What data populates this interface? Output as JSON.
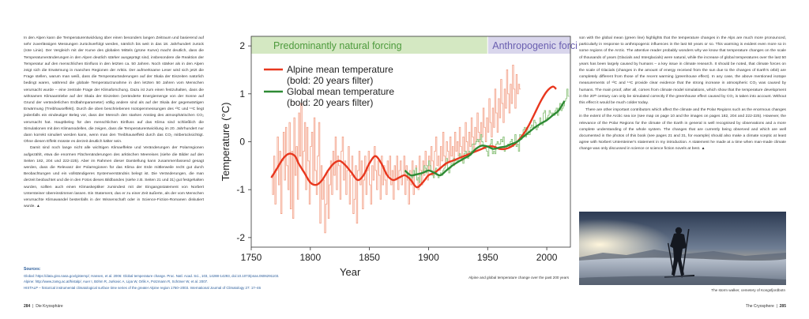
{
  "left_page": {
    "paragraphs": [
      "In den Alpen kann die Temperaturentwicklung über einen besonders langen Zeitraum und basierend auf sehr zuverlässigen Messungen zurückverfolgt werden, nämlich bis weit in das 18. Jahrhundert zurück (rote Linie). Der Vergleich mit der Kurve des globalen Mittels (grüne Kurve) macht deutlich, dass die Temperaturveränderungen in den Alpen deutlich stärker ausgeprägt sind, insbesondere die Reaktion der Temperatur auf den menschlichen Einfluss in den letzten ca. 50 Jahren. Noch stärker als in den Alpen zeigt sich die Erwärmung in manchen Regionen der Arktis. Der aufmerksame Leser wird sich jetzt die Frage stellen, warum man weiß, dass die Temperaturänderungen auf der Skala der Eiszeiten natürlich bedingt waren, während die globale Temperaturzunahme in den letzten 50 Jahren vom Menschen verursacht wurde – eine zentrale Frage der Klimaforschung. Dazu ist zum einen festzuhalten, dass die wirksamen Klimaantriebe auf der Skala der Eiszeiten (veränderte Energiemenge von der Sonne auf Grund der veränderlichen Erdbahnparameter) völlig andere sind als auf der Skala der gegenwärtigen Erwärmung (Treibhauseffekt). Durch die oben beschriebenen Isotopenmessungen des ¹³C und ¹⁴C liegt jedenfalls ein eindeutiger Beleg vor, dass der Mensch den starken Anstieg des atmosphärischen CO₂ verursacht hat. Hauptbeleg für den menschlichen Einfluss auf das Klima sind schließlich die Simulationen mit den Klimamodellen, die zeigen, dass die Temperaturentwicklung im 20. Jahrhundert nur dann korrekt simuliert werden kann, wenn man den Treibhauseffekt durch das CO₂ mitberücksichtigt. Ohne diesen Effekt müsste es derzeit deutlich kälter sein.",
      "Damit sind noch lange nicht alle wichtigen Klimaeffekte und Veränderungen der Polarregionen aufgezählt, etwa die enormen Flächenänderungen des arktischen Meereises (siehe die Bilder auf den Seiten 182, 204 und 222-225). Aber im Rahmen dieser Darstellung kann zusammenfassend gesagt werden, dass die Relevanz der Polarregionen für das Klima der Erde mittlerweile recht gut durch Beobachtungen und ein vollständigeres Systemverständnis belegt ist. Die Veränderungen, die man derzeit beobachtet und die in den Fotos dieses Bildbandes (siehe z.B. Seiten 21 und 31) gut festgehalten wurden, sollten auch einen Klimaskeptiker zumindest mit der Eingangsstatement von Norbert Untersteiner übereinstimmen lassen. Ein Statement, das er zu einer Zeit äußerte, als der vom Menschen verursachte Klimawandel bestenfalls in der Wissenschaft oder in Science-Fiction-Romanen diskutiert wurde. ▲"
    ]
  },
  "right_page": {
    "paragraphs": [
      "son with the global mean (green line) highlights that the temperature changes in the Alps are much more pronounced, particularly in response to anthropogenic influences in the last 50 years or so. This warming is evident even more so in some regions of the Arctic. The attentive reader probably wonders why we know that temperature changes on the scale of thousands of years (Glacials and Interglacials) were natural, while the increase of global temperatures over the last 50 years has been largely caused by humans – a key issue in climate research. It should be noted, that climate forces on the scale of Glacials (changes in the amount of energy received from the sun due to the changes of Earth's orbit) are completely different from those of the recent warming (greenhouse effect). In any case, the above mentioned isotope measurements of ¹³C and ¹⁴C provide clear evidence that the strong increase in atmospheric CO₂ was caused by humans. The main proof, after all, comes from climate model simulations, which show that the temperature development in the 20ᵗʰ century can only be simulated correctly if the greenhouse effect caused by CO₂ is taken into account. Without this effect it would be much colder today.",
      "There are other important contributors which affect the climate and the Polar Regions such as the enormous changes in the extent of the Arctic sea ice (see map on page 10 and the images on pages 182, 204 and 222-225). However, the relevance of the Polar Regions for the climate of the Earth in general is well recognised by observations and a more complete understanding of the whole system. The changes that are currently being observed and which are well documented in the photos of this book (see pages 21 and 31, for example) should also make a climate sceptic at least agree with Norbert Untersteiner's statement in my introduction. A statement he made at a time when man-made climate change was only discussed in science or science fiction novels at best. ▲"
    ]
  },
  "sources": {
    "title": "Sources:",
    "lines": [
      "Global: https://data.giss.nasa.gov/gistemp/, Hansen, et al. 2006: Global temperature change. Proc. Natl. Acad. Sci., 103, 14288-14293, doi:10.1073/pnas.0606291103.",
      "Alpine: http://www.zamg.ac.at/histalp/, Auer I, Böhm R, Jurkovic A, Lipa W, Orlik A, Potzmann R, Schöner W, et al. 2007.",
      "HISTALP – historical instrumental climatological surface time series of the greater Alpine region 1760–2003. International Journal of Climatology 27: 17–46"
    ]
  },
  "captions": {
    "chart": "Alpine and global temperature change over the past 200 years",
    "photo": "The storm walker, cemetery of Kongsfjordbotn/Dikson ...",
    "photo_short": "The storm walker, cemetery of Kongsfjordbotn"
  },
  "footer": {
    "left_page_num": "284",
    "left_title": "Die Kryosphäre",
    "right_title": "The Cryosphere",
    "right_page_num": "285",
    "separator": "|"
  },
  "colors": {
    "natural_band": "#d4e8c2",
    "anthro_band": "#d9d6ec",
    "alpine_thin": "#f4a58d",
    "alpine_bold": "#e8371e",
    "global_thin": "#8ac17a",
    "global_bold": "#2e8a34"
  },
  "chart_data": {
    "type": "line",
    "title": "",
    "xlabel": "Year",
    "ylabel": "Temperature (°C)",
    "xlim": [
      1750,
      2020
    ],
    "ylim": [
      -2.2,
      2.2
    ],
    "xticks": [
      1750,
      1800,
      1850,
      1900,
      1950,
      2000
    ],
    "yticks": [
      -2,
      -1,
      0,
      1,
      2
    ],
    "bands": [
      {
        "label": "Predominantly natural forcing",
        "from": 1750,
        "to": 1950
      },
      {
        "label": "Anthropogenic forcing",
        "from": 1950,
        "to": 2020
      }
    ],
    "legend": [
      {
        "line1": "Alpine mean temperature",
        "line2": "(bold: 20 years filter)"
      },
      {
        "line1": "Global mean temperature",
        "line2": "(bold: 20 years filter)"
      }
    ],
    "alpine_annual": {
      "x_start": 1767,
      "values": [
        -0.7,
        -1.1,
        -0.3,
        -1.3,
        -0.6,
        0.1,
        -0.9,
        -0.2,
        -1.5,
        -0.4,
        0.2,
        -0.8,
        0.3,
        -0.5,
        -1.0,
        0.4,
        -1.4,
        -0.2,
        -1.6,
        0.5,
        -0.7,
        -0.1,
        -1.2,
        0.6,
        -0.3,
        0.8,
        -0.6,
        -0.2,
        0.4,
        -1.0,
        0.3,
        -0.4,
        -1.3,
        -0.1,
        0.2,
        -0.9,
        0.5,
        -0.6,
        -1.1,
        -0.3,
        0.4,
        -1.7,
        -0.5,
        -1.2,
        -0.8,
        -1.9,
        -1.3,
        -0.6,
        -1.6,
        -0.9,
        -0.4,
        -1.1,
        -0.2,
        -0.7,
        0.1,
        -1.0,
        -0.3,
        -0.5,
        -1.2,
        -0.2,
        0.1,
        -0.8,
        -0.4,
        -1.1,
        -0.6,
        -0.1,
        -1.3,
        -0.7,
        -0.3,
        -1.5,
        -1.2,
        -0.5,
        -1.7,
        -0.6,
        -0.2,
        -0.9,
        -0.4,
        -1.4,
        -0.8,
        -0.3,
        -1.1,
        -0.6,
        -0.2,
        -0.9,
        -1.3,
        -0.5,
        -0.8,
        -0.1,
        -0.6,
        -1.0,
        -0.4,
        -0.7,
        -1.2,
        -0.3,
        -0.9,
        -0.5,
        -0.8,
        -1.1,
        -0.4,
        -0.7,
        -0.3,
        -0.9,
        -0.6,
        -1.2,
        -0.5,
        -0.8,
        -0.3,
        -1.0,
        -0.6,
        -0.4,
        -0.9,
        -0.7,
        -0.3,
        -1.1,
        -0.5,
        -0.8,
        -1.3,
        -0.6,
        -0.9,
        -0.4,
        -1.1,
        -0.7,
        -0.5,
        -0.8,
        -1.0,
        -0.3,
        -0.6,
        -0.9,
        -0.4,
        -0.7,
        -0.2,
        -0.5,
        -0.8,
        -0.3,
        -0.6,
        -0.1,
        -0.4,
        -0.7,
        -0.2,
        0.1,
        -0.5,
        -0.3,
        -0.6,
        -0.1,
        -0.4,
        0.2,
        -0.3,
        -0.5,
        0.0,
        -0.2,
        -0.4,
        0.1,
        -0.3,
        -0.1,
        -0.5,
        0.2,
        -0.2,
        0.0,
        -0.3,
        0.3,
        -0.1,
        -0.4,
        0.1,
        -0.2,
        0.4,
        0.0,
        -0.3,
        0.2,
        -0.1,
        0.5,
        0.1,
        -0.2,
        0.3,
        0.0,
        0.6,
        0.2,
        -0.1,
        0.4,
        0.1,
        0.7,
        0.3,
        0.0,
        0.5,
        0.2,
        0.9,
        0.4,
        0.1,
        0.7,
        0.3,
        1.1,
        0.6,
        0.2,
        0.9,
        0.5,
        1.3,
        0.8,
        0.4,
        1.1,
        0.7,
        1.5,
        1.0,
        0.6,
        1.2,
        0.8,
        1.6,
        1.1,
        0.7,
        1.4,
        1.0,
        1.2,
        1.1
      ],
      "note": "estimated from visual trace"
    },
    "alpine_filtered": {
      "x": [
        1767,
        1772,
        1777,
        1782,
        1787,
        1790,
        1795,
        1800,
        1805,
        1810,
        1815,
        1820,
        1825,
        1830,
        1835,
        1840,
        1845,
        1850,
        1855,
        1860,
        1865,
        1870,
        1875,
        1880,
        1885,
        1890,
        1895,
        1900,
        1905,
        1910,
        1915,
        1920,
        1925,
        1930,
        1935,
        1940,
        1945,
        1950,
        1955,
        1960,
        1965,
        1970,
        1975,
        1980,
        1985,
        1990,
        1995,
        2000,
        2005,
        2008
      ],
      "y": [
        -0.75,
        -0.55,
        -0.35,
        -0.25,
        -0.3,
        -0.45,
        -0.65,
        -0.85,
        -0.9,
        -0.8,
        -0.6,
        -0.45,
        -0.4,
        -0.5,
        -0.65,
        -0.8,
        -0.7,
        -0.45,
        -0.3,
        -0.45,
        -0.7,
        -0.8,
        -0.75,
        -0.7,
        -0.8,
        -0.95,
        -0.85,
        -0.7,
        -0.65,
        -0.55,
        -0.45,
        -0.4,
        -0.35,
        -0.3,
        -0.25,
        -0.2,
        -0.15,
        -0.1,
        -0.1,
        -0.15,
        -0.15,
        -0.1,
        0.0,
        0.15,
        0.35,
        0.6,
        0.85,
        1.05,
        1.15,
        1.1
      ]
    },
    "global_annual": {
      "x_start": 1880,
      "values": [
        -0.6,
        -0.65,
        -0.7,
        -0.75,
        -0.8,
        -0.7,
        -0.75,
        -0.6,
        -0.7,
        -0.55,
        -0.8,
        -0.75,
        -0.85,
        -0.7,
        -0.65,
        -0.6,
        -0.5,
        -0.55,
        -0.65,
        -0.5,
        -0.4,
        -0.5,
        -0.6,
        -0.7,
        -0.75,
        -0.6,
        -0.55,
        -0.7,
        -0.75,
        -0.7,
        -0.65,
        -0.7,
        -0.6,
        -0.55,
        -0.45,
        -0.35,
        -0.55,
        -0.65,
        -0.55,
        -0.45,
        -0.45,
        -0.35,
        -0.4,
        -0.4,
        -0.4,
        -0.35,
        -0.25,
        -0.3,
        -0.35,
        -0.45,
        -0.25,
        -0.2,
        -0.25,
        -0.35,
        -0.2,
        -0.25,
        -0.2,
        -0.05,
        -0.05,
        -0.05,
        0.0,
        0.05,
        0.0,
        0.05,
        0.15,
        0.0,
        -0.15,
        -0.1,
        -0.15,
        -0.2,
        -0.3,
        -0.1,
        -0.05,
        0.05,
        -0.25,
        -0.2,
        -0.25,
        -0.05,
        0.0,
        -0.05,
        -0.05,
        0.05,
        0.0,
        0.1,
        -0.2,
        -0.15,
        -0.1,
        -0.05,
        -0.1,
        0.0,
        0.05,
        -0.1,
        -0.05,
        0.15,
        -0.1,
        -0.05,
        -0.2,
        0.15,
        0.05,
        0.15,
        0.25,
        0.3,
        0.1,
        0.3,
        0.15,
        0.15,
        0.3,
        0.35,
        0.3,
        0.45,
        0.4,
        0.25,
        0.3,
        0.35,
        0.5,
        0.4,
        0.35,
        0.6,
        0.65,
        0.45,
        0.5,
        0.55,
        0.65,
        0.6,
        0.55,
        0.6,
        0.55,
        0.65,
        0.7,
        0.55,
        0.7,
        0.8,
        0.65,
        0.7,
        0.75,
        0.85,
        0.9,
        1.1,
        0.95
      ]
    },
    "global_filtered": {
      "x": [
        1880,
        1885,
        1890,
        1895,
        1900,
        1905,
        1910,
        1915,
        1920,
        1925,
        1930,
        1935,
        1940,
        1945,
        1950,
        1955,
        1960,
        1965,
        1970,
        1975,
        1980,
        1985,
        1990,
        1995,
        2000,
        2005,
        2010,
        2015
      ],
      "y": [
        -0.6,
        -0.7,
        -0.68,
        -0.65,
        -0.6,
        -0.65,
        -0.7,
        -0.6,
        -0.5,
        -0.42,
        -0.35,
        -0.28,
        -0.15,
        -0.08,
        -0.1,
        -0.15,
        -0.12,
        -0.1,
        -0.05,
        0.0,
        0.1,
        0.2,
        0.3,
        0.38,
        0.45,
        0.55,
        0.65,
        0.85
      ]
    }
  }
}
